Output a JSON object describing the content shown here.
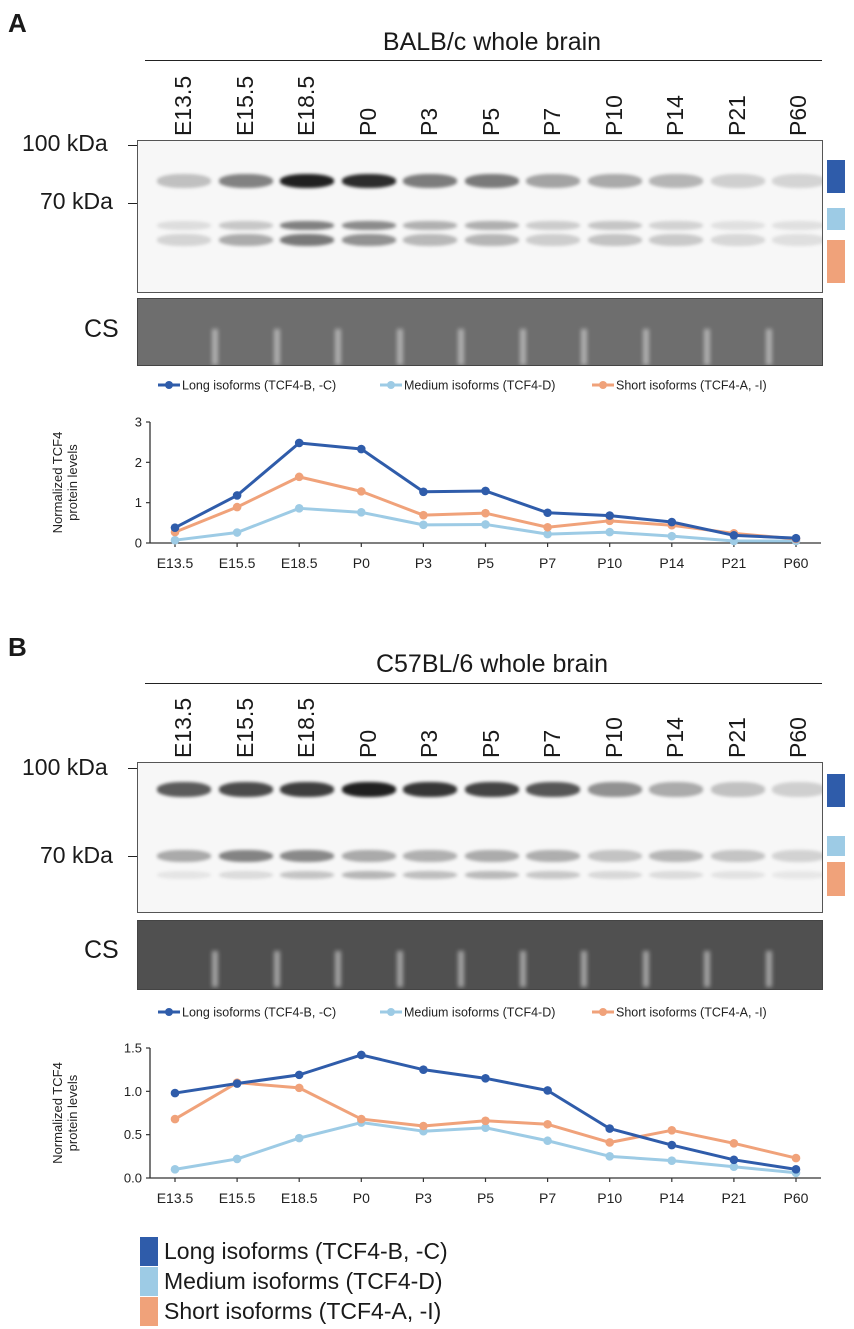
{
  "colors": {
    "long": "#2f5caa",
    "medium": "#9dcbe5",
    "short": "#f0a27a",
    "axis": "#333333"
  },
  "panel_a": {
    "letter": "A",
    "strain_title": "BALB/c whole brain",
    "lanes": [
      "E13.5",
      "E15.5",
      "E18.5",
      "P0",
      "P3",
      "P5",
      "P7",
      "P10",
      "P14",
      "P21",
      "P60"
    ],
    "mw_100": "100 kDa",
    "mw_70": "70 kDa",
    "cs_label": "CS"
  },
  "panel_b": {
    "letter": "B",
    "strain_title": "C57BL/6 whole brain",
    "lanes": [
      "E13.5",
      "E15.5",
      "E18.5",
      "P0",
      "P3",
      "P5",
      "P7",
      "P10",
      "P14",
      "P21",
      "P60"
    ],
    "mw_100": "100 kDa",
    "mw_70": "70 kDa",
    "cs_label": "CS"
  },
  "chart_data": [
    {
      "type": "line",
      "title": "",
      "xlabel": "",
      "ylabel": "Normalized TCF4 protein levels",
      "ylabel_lines": [
        "Normalized TCF4",
        "protein levels"
      ],
      "ylim": [
        0,
        3
      ],
      "yticks": [
        "0",
        "1",
        "2",
        "3"
      ],
      "categories": [
        "E13.5",
        "E15.5",
        "E18.5",
        "P0",
        "P3",
        "P5",
        "P7",
        "P10",
        "P14",
        "P21",
        "P60"
      ],
      "legend": "top",
      "series": [
        {
          "name": "Long isoforms (TCF4-B, -C)",
          "color": "#2f5caa",
          "values": [
            0.38,
            1.18,
            2.48,
            2.33,
            1.27,
            1.29,
            0.75,
            0.68,
            0.52,
            0.19,
            0.12
          ]
        },
        {
          "name": "Medium isoforms (TCF4-D)",
          "color": "#9dcbe5",
          "values": [
            0.07,
            0.26,
            0.86,
            0.76,
            0.45,
            0.46,
            0.22,
            0.27,
            0.17,
            0.05,
            0.05
          ]
        },
        {
          "name": "Short isoforms (TCF4-A, -I)",
          "color": "#f0a27a",
          "values": [
            0.27,
            0.89,
            1.64,
            1.28,
            0.69,
            0.74,
            0.39,
            0.55,
            0.44,
            0.24,
            0.1
          ]
        }
      ]
    },
    {
      "type": "line",
      "title": "",
      "xlabel": "",
      "ylabel": "Normalized TCF4 protein levels",
      "ylabel_lines": [
        "Normalized TCF4",
        "protein levels"
      ],
      "ylim": [
        0,
        1.5
      ],
      "yticks": [
        "0.0",
        "0.5",
        "1.0",
        "1.5"
      ],
      "categories": [
        "E13.5",
        "E15.5",
        "E18.5",
        "P0",
        "P3",
        "P5",
        "P7",
        "P10",
        "P14",
        "P21",
        "P60"
      ],
      "legend": "top",
      "series": [
        {
          "name": "Long isoforms (TCF4-B, -C)",
          "color": "#2f5caa",
          "values": [
            0.98,
            1.09,
            1.19,
            1.42,
            1.25,
            1.15,
            1.01,
            0.57,
            0.38,
            0.21,
            0.1
          ]
        },
        {
          "name": "Medium isoforms (TCF4-D)",
          "color": "#9dcbe5",
          "values": [
            0.1,
            0.22,
            0.46,
            0.64,
            0.54,
            0.58,
            0.43,
            0.25,
            0.2,
            0.13,
            0.06
          ]
        },
        {
          "name": "Short isoforms (TCF4-A, -I)",
          "color": "#f0a27a",
          "values": [
            0.68,
            1.1,
            1.04,
            0.68,
            0.6,
            0.66,
            0.62,
            0.41,
            0.55,
            0.4,
            0.23
          ]
        }
      ]
    }
  ],
  "bottom_legend": [
    {
      "label": "Long isoforms (TCF4-B, -C)",
      "color": "#2f5caa"
    },
    {
      "label": "Medium isoforms (TCF4-D)",
      "color": "#9dcbe5"
    },
    {
      "label": "Short isoforms (TCF4-A, -I)",
      "color": "#f0a27a"
    }
  ]
}
